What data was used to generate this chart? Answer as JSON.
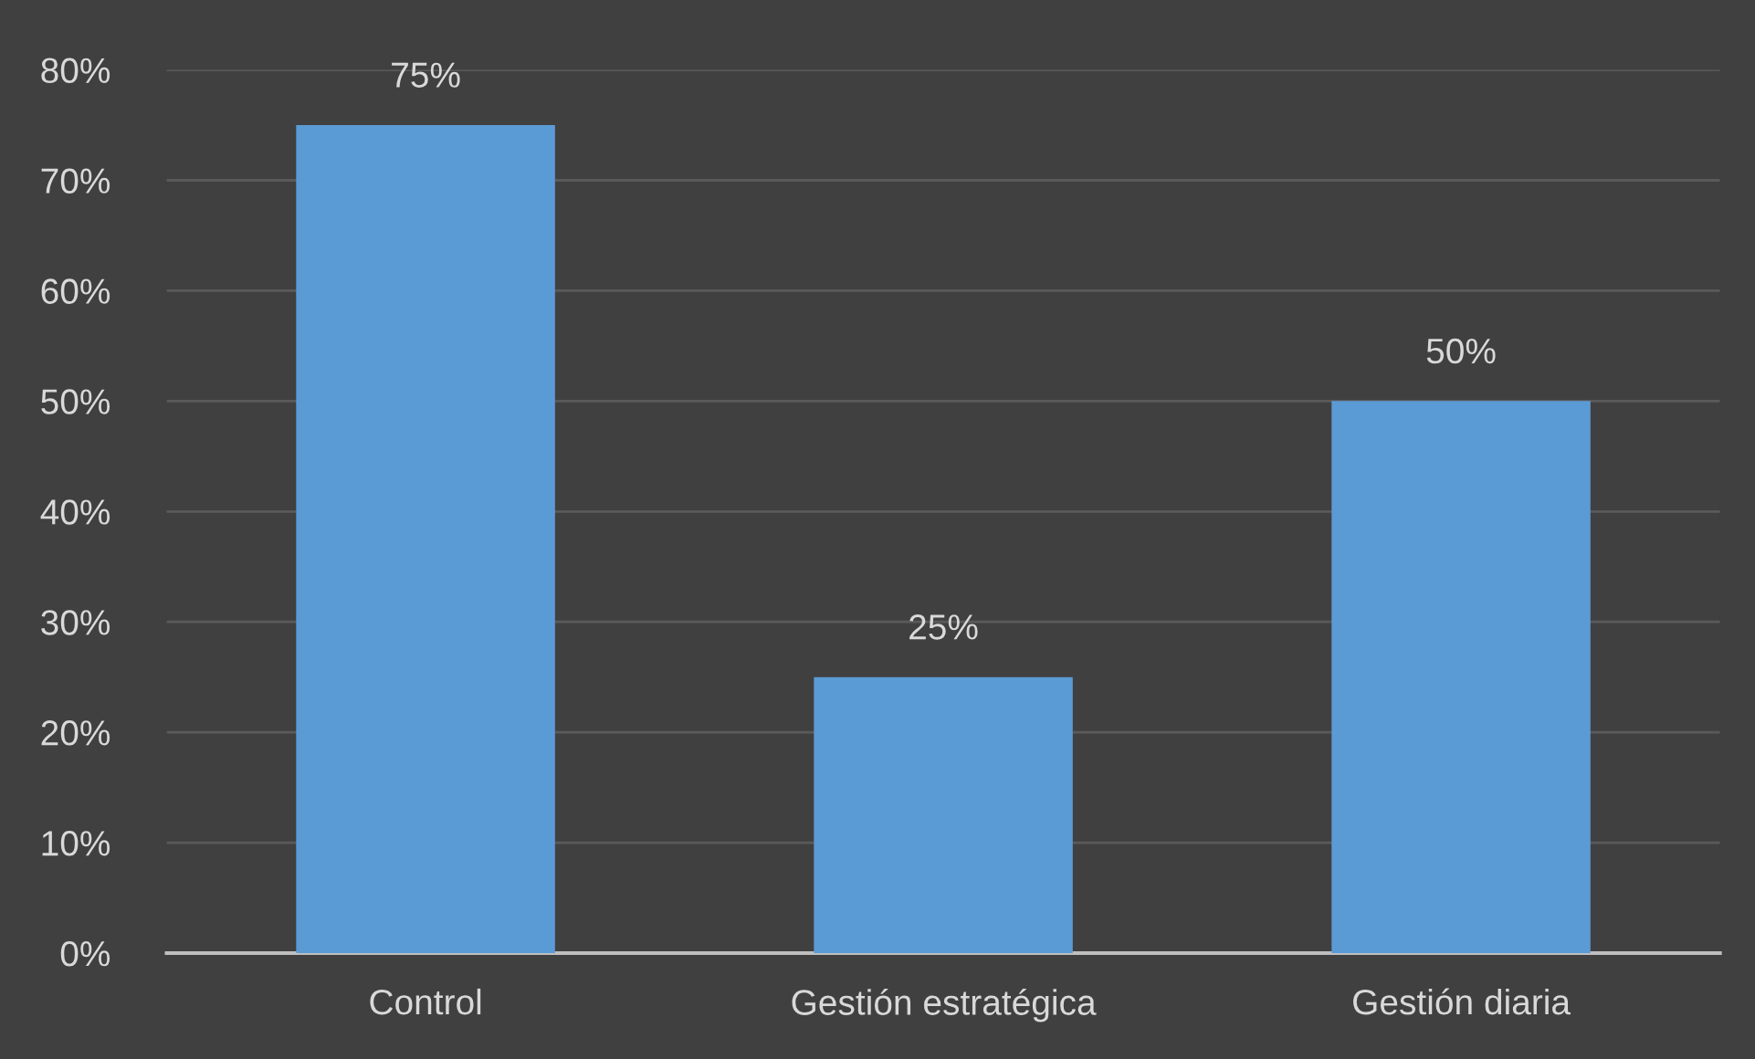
{
  "chart_data": {
    "type": "bar",
    "categories": [
      "Control",
      "Gestión estratégica",
      "Gestión diaria"
    ],
    "values": [
      75,
      25,
      50
    ],
    "value_labels": [
      "75%",
      "25%",
      "50%"
    ],
    "color": "#5b9bd5",
    "ylim": [
      0,
      80
    ],
    "yticks": [
      {
        "value": 0,
        "label": "0%"
      },
      {
        "value": 10,
        "label": "10%"
      },
      {
        "value": 20,
        "label": "20%"
      },
      {
        "value": 30,
        "label": "30%"
      },
      {
        "value": 40,
        "label": "40%"
      },
      {
        "value": 50,
        "label": "50%"
      },
      {
        "value": 60,
        "label": "60%"
      },
      {
        "value": 70,
        "label": "70%"
      },
      {
        "value": 80,
        "label": "80%"
      }
    ],
    "grid": "y",
    "legend": false
  }
}
